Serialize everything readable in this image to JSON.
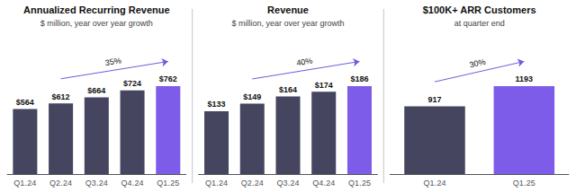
{
  "chart_data": [
    {
      "type": "bar",
      "title": "Annualized Recurring Revenue",
      "subtitle": "$ million, year over year growth",
      "categories": [
        "Q1․24",
        "Q2․24",
        "Q3․24",
        "Q4․24",
        "Q1․25"
      ],
      "values": [
        564,
        612,
        664,
        724,
        762
      ],
      "value_labels": [
        "$564",
        "$612",
        "$664",
        "$724",
        "$762"
      ],
      "data_labels": true,
      "colors": [
        "#454560",
        "#454560",
        "#454560",
        "#454560",
        "#7c5ce8"
      ],
      "annotation": {
        "text": "35%",
        "from": "Q2․24",
        "to": "Q1․25",
        "color": "#6b5bdd"
      },
      "ylim": [
        0,
        1181.1
      ],
      "grid": false,
      "tick_labels": "x"
    },
    {
      "type": "bar",
      "title": "Revenue",
      "subtitle": "$ million, year over year growth",
      "categories": [
        "Q1․24",
        "Q2․24",
        "Q3․24",
        "Q4․24",
        "Q1․25"
      ],
      "values": [
        133,
        149,
        164,
        174,
        186
      ],
      "value_labels": [
        "$133",
        "$149",
        "$164",
        "$174",
        "$186"
      ],
      "data_labels": true,
      "colors": [
        "#454560",
        "#454560",
        "#454560",
        "#454560",
        "#7c5ce8"
      ],
      "annotation": {
        "text": "40%",
        "from": "Q2․24",
        "to": "Q1․25",
        "color": "#6b5bdd"
      },
      "ylim": [
        0,
        288.3
      ],
      "grid": false,
      "tick_labels": "x"
    },
    {
      "type": "bar",
      "title": "$100K+ ARR Customers",
      "subtitle": "at quarter end",
      "categories": [
        "Q1․24",
        "Q1․25"
      ],
      "values": [
        917,
        1193
      ],
      "data_labels": true,
      "colors": [
        "#454560",
        "#7c5ce8"
      ],
      "annotation": {
        "text": "30%",
        "from": "Q1․24",
        "to": "Q1․25",
        "color": "#6b5bdd"
      },
      "ylim": [
        0,
        1849.15
      ],
      "grid": false,
      "tick_labels": "x"
    }
  ]
}
